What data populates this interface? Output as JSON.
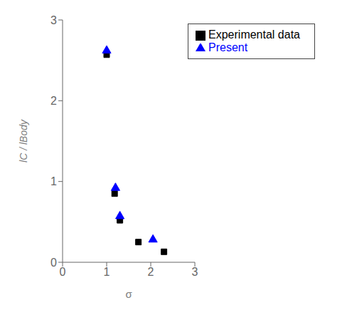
{
  "chart_data": {
    "type": "scatter",
    "xlabel": "σ",
    "ylabel": "lC / lBody",
    "xlim": [
      0,
      3
    ],
    "ylim": [
      0,
      3
    ],
    "xticks": [
      0,
      1,
      2,
      3
    ],
    "yticks": [
      0,
      1,
      2,
      3
    ],
    "grid": false,
    "legend": "upper right",
    "series": [
      {
        "name": "Experimental data",
        "color": "black",
        "marker": "square",
        "x": [
          1.0,
          1.18,
          1.3,
          1.72,
          2.3
        ],
        "values": [
          2.57,
          0.85,
          0.52,
          0.25,
          0.13
        ]
      },
      {
        "name": "Present",
        "color": "blue",
        "marker": "triangle",
        "x": [
          1.0,
          1.2,
          1.3,
          2.05
        ],
        "values": [
          2.62,
          0.92,
          0.57,
          0.28
        ]
      }
    ]
  }
}
